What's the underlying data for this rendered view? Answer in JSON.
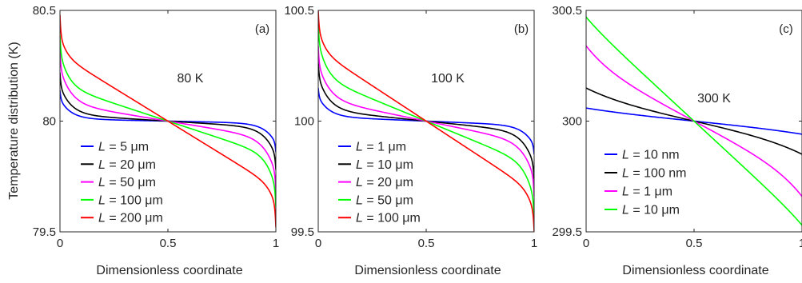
{
  "figure": {
    "ylabel": "Temperature distribution (K)",
    "xlabel": "Dimensionless coordinate"
  },
  "chart_data": [
    {
      "type": "line",
      "panel_label": "(a)",
      "annotation": "80 K",
      "xlabel": "Dimensionless coordinate",
      "ylabel": "Temperature distribution (K)",
      "xlim": [
        0,
        1
      ],
      "ylim": [
        79.5,
        80.5
      ],
      "x_ticks": [
        "0",
        "0.5",
        "1"
      ],
      "y_ticks": [
        "79.5",
        "80",
        "80.5"
      ],
      "y_tick_values": [
        79.5,
        80,
        80.5
      ],
      "legend_position": "lower-left",
      "grid": false,
      "series": [
        {
          "name": "L = 5 μm",
          "legend_var": "L",
          "legend_rest": " = 5 μm",
          "color": "#0000ff",
          "edge": 0.1,
          "linear": 0.01,
          "k": 0.05,
          "overshoot": 0.04
        },
        {
          "name": "L = 20 μm",
          "legend_var": "L",
          "legend_rest": " = 20 μm",
          "color": "#000000",
          "edge": 0.16,
          "linear": 0.03,
          "k": 0.05,
          "overshoot": 0.06
        },
        {
          "name": "L = 50 μm",
          "legend_var": "L",
          "legend_rest": " = 50 μm",
          "color": "#ff00ff",
          "edge": 0.24,
          "linear": 0.08,
          "k": 0.05,
          "overshoot": 0.08
        },
        {
          "name": "L = 100 μm",
          "legend_var": "L",
          "legend_rest": " = 100 μm",
          "color": "#00ff00",
          "edge": 0.31,
          "linear": 0.16,
          "k": 0.04,
          "overshoot": 0.08
        },
        {
          "name": "L = 200 μm",
          "legend_var": "L",
          "legend_rest": " = 200 μm",
          "color": "#ff0000",
          "edge": 0.39,
          "linear": 0.3,
          "k": 0.03,
          "overshoot": 0.09
        }
      ]
    },
    {
      "type": "line",
      "panel_label": "(b)",
      "annotation": "100 K",
      "xlabel": "Dimensionless coordinate",
      "xlim": [
        0,
        1
      ],
      "ylim": [
        99.5,
        100.5
      ],
      "x_ticks": [
        "0",
        "0.5",
        "1"
      ],
      "y_ticks": [
        "99.5",
        "100",
        "100.5"
      ],
      "y_tick_values": [
        99.5,
        100,
        100.5
      ],
      "legend_position": "lower-left",
      "grid": false,
      "series": [
        {
          "name": "L = 1 μm",
          "legend_var": "L",
          "legend_rest": " = 1 μm",
          "color": "#0000ff",
          "edge": 0.11,
          "linear": 0.02,
          "k": 0.05,
          "overshoot": 0.04
        },
        {
          "name": "L = 10 μm",
          "legend_var": "L",
          "legend_rest": " = 10 μm",
          "color": "#000000",
          "edge": 0.2,
          "linear": 0.05,
          "k": 0.05,
          "overshoot": 0.07
        },
        {
          "name": "L = 20 μm",
          "legend_var": "L",
          "legend_rest": " = 20 μm",
          "color": "#ff00ff",
          "edge": 0.26,
          "linear": 0.1,
          "k": 0.05,
          "overshoot": 0.08
        },
        {
          "name": "L = 50 μm",
          "legend_var": "L",
          "legend_rest": " = 50 μm",
          "color": "#00ff00",
          "edge": 0.36,
          "linear": 0.2,
          "k": 0.04,
          "overshoot": 0.08
        },
        {
          "name": "L = 100 μm",
          "legend_var": "L",
          "legend_rest": " = 100 μm",
          "color": "#ff0000",
          "edge": 0.42,
          "linear": 0.32,
          "k": 0.03,
          "overshoot": 0.08
        }
      ]
    },
    {
      "type": "line",
      "panel_label": "(c)",
      "annotation": "300 K",
      "xlabel": "Dimensionless coordinate",
      "xlim": [
        0,
        1
      ],
      "ylim": [
        299.5,
        300.5
      ],
      "x_ticks": [
        "0",
        "0.5",
        "1"
      ],
      "y_ticks": [
        "299.5",
        "300",
        "300.5"
      ],
      "y_tick_values": [
        299.5,
        300,
        300.5
      ],
      "legend_position": "lower-left",
      "grid": false,
      "series": [
        {
          "name": "L = 10 nm",
          "legend_var": "L",
          "legend_rest": " = 10 nm",
          "color": "#0000ff",
          "edge": 0.06,
          "linear": 0.035,
          "k": 0.3,
          "overshoot": 0
        },
        {
          "name": "L = 100 nm",
          "legend_var": "L",
          "legend_rest": " = 100 nm",
          "color": "#000000",
          "edge": 0.15,
          "linear": 0.09,
          "k": 0.2,
          "overshoot": 0
        },
        {
          "name": "L = 1 μm",
          "legend_var": "L",
          "legend_rest": " = 1 μm",
          "color": "#ff00ff",
          "edge": 0.34,
          "linear": 0.25,
          "k": 0.12,
          "overshoot": 0
        },
        {
          "name": "L = 10 μm",
          "legend_var": "L",
          "legend_rest": " = 10 μm",
          "color": "#00ff00",
          "edge": 0.47,
          "linear": 0.45,
          "k": 0.08,
          "overshoot": 0
        }
      ]
    }
  ]
}
